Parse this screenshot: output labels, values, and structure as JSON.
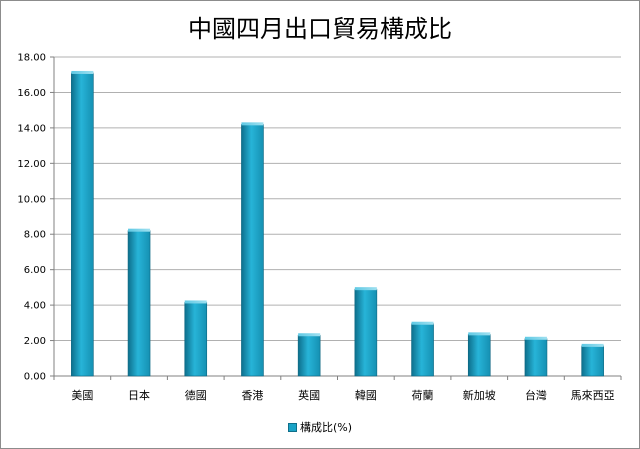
{
  "chart_data": {
    "type": "bar",
    "title": "中國四月出口貿易構成比",
    "categories": [
      "美國",
      "日本",
      "德國",
      "香港",
      "英國",
      "韓國",
      "荷蘭",
      "新加坡",
      "台灣",
      "馬來西亞"
    ],
    "series": [
      {
        "name": "構成比(%)",
        "values": [
          17.1,
          8.2,
          4.15,
          14.2,
          2.3,
          4.9,
          2.95,
          2.35,
          2.1,
          1.7
        ]
      }
    ],
    "y_ticks": [
      "0.00",
      "2.00",
      "4.00",
      "6.00",
      "8.00",
      "10.00",
      "12.00",
      "14.00",
      "16.00",
      "18.00"
    ],
    "ylim": [
      0,
      18
    ],
    "grid": true,
    "legend_position": "bottom",
    "bar_color": "#1aa3c6"
  }
}
